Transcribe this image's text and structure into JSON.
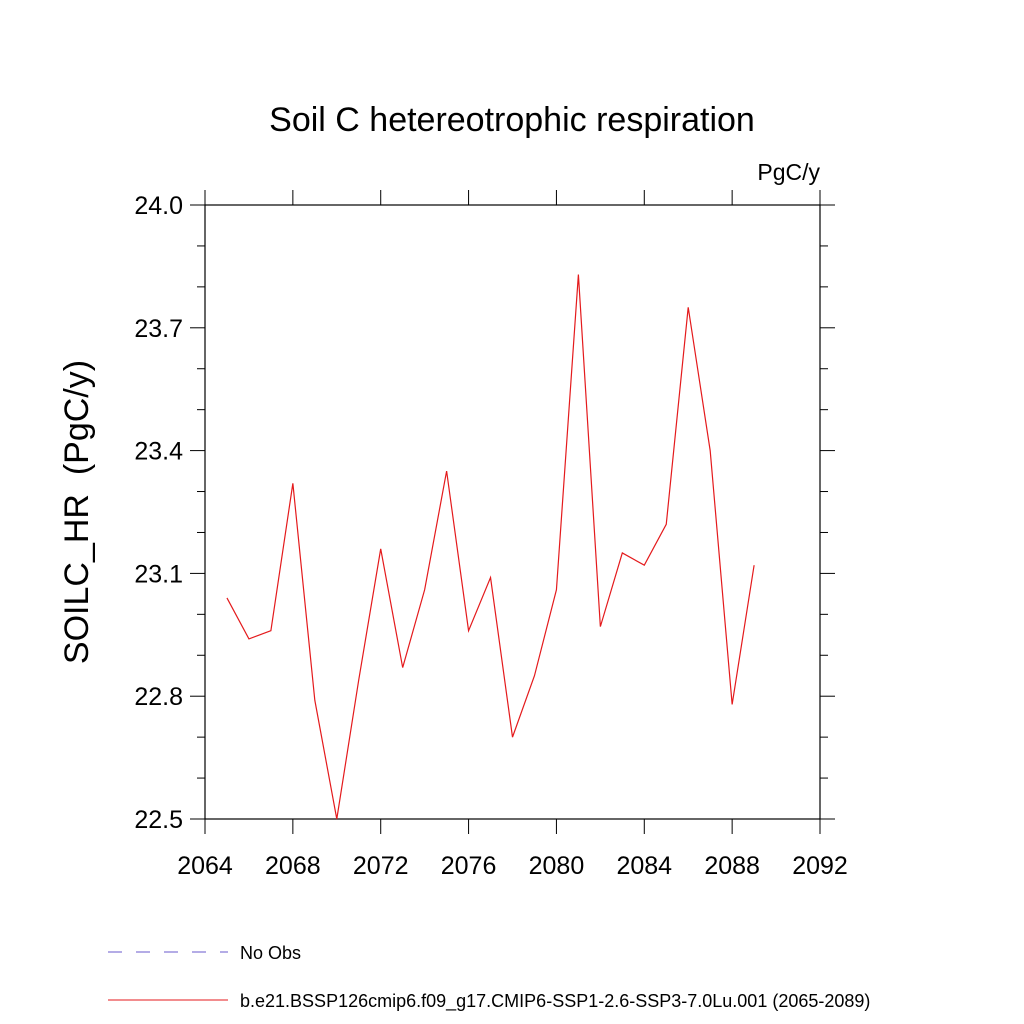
{
  "chart_data": {
    "type": "line",
    "title": "Soil C hetereotrophic respiration",
    "units_label": "PgC/y",
    "ylabel": "SOILC_HR  (PgC/y)",
    "xlabel": "",
    "xlim": [
      2064,
      2092
    ],
    "ylim": [
      22.5,
      24.0
    ],
    "x_ticks": [
      2064,
      2068,
      2072,
      2076,
      2080,
      2084,
      2088,
      2092
    ],
    "y_ticks": [
      "22.5",
      "22.8",
      "23.1",
      "23.4",
      "23.7",
      "24.0"
    ],
    "grid": false,
    "legend_position": "bottom-left",
    "series": [
      {
        "name": "b.e21.BSSP126cmip6.f09_g17.CMIP6-SSP1-2.6-SSP3-7.0Lu.001 (2065-2089)",
        "color": "#e41a1c",
        "dash": "solid",
        "x": [
          2065,
          2066,
          2067,
          2068,
          2069,
          2070,
          2071,
          2072,
          2073,
          2074,
          2075,
          2076,
          2077,
          2078,
          2079,
          2080,
          2081,
          2082,
          2083,
          2084,
          2085,
          2086,
          2087,
          2088,
          2089
        ],
        "y": [
          23.04,
          22.94,
          22.96,
          23.32,
          22.79,
          22.5,
          22.84,
          23.16,
          22.87,
          23.06,
          23.35,
          22.96,
          23.09,
          22.7,
          22.85,
          23.06,
          23.83,
          22.97,
          23.15,
          23.12,
          23.22,
          23.75,
          23.4,
          22.78,
          23.12
        ]
      }
    ],
    "legend": [
      {
        "label": "No Obs",
        "color": "#6a5acd",
        "dash": "dashed"
      },
      {
        "label": "b.e21.BSSP126cmip6.f09_g17.CMIP6-SSP1-2.6-SSP3-7.0Lu.001 (2065-2089)",
        "color": "#e41a1c",
        "dash": "solid"
      }
    ]
  }
}
